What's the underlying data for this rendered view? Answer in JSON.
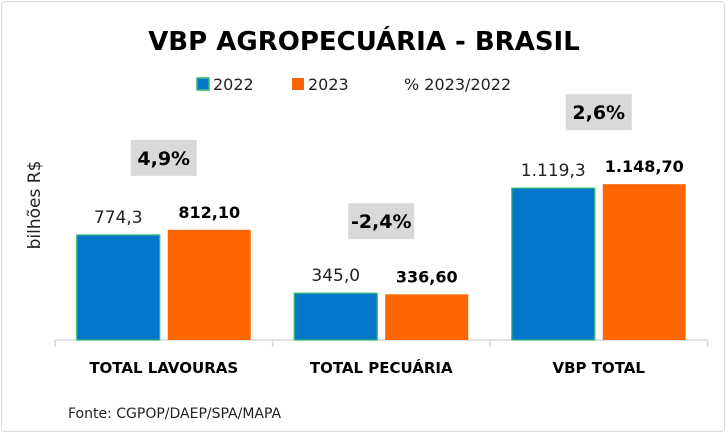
{
  "chart_data": {
    "type": "bar",
    "title": "VBP AGROPECUÁRIA - BRASIL",
    "ylabel": "bilhões R$",
    "xlabel": "",
    "categories": [
      "TOTAL LAVOURAS",
      "TOTAL PECUÁRIA",
      "VBP TOTAL"
    ],
    "series": [
      {
        "name": "2022",
        "values": [
          774.3,
          345.0,
          1119.3
        ],
        "labels": [
          "774,3",
          "345,0",
          "1.119,3"
        ],
        "color": "#0777cb",
        "border": "#2fbf71"
      },
      {
        "name": "2023",
        "values": [
          812.1,
          336.6,
          1148.7
        ],
        "labels": [
          "812,10",
          "336,60",
          "1.148,70"
        ],
        "color": "#ff6600"
      }
    ],
    "pct_series": {
      "name": "% 2023/2022",
      "labels": [
        "4,9%",
        "-2,4%",
        "2,6%"
      ],
      "box_color": "#d9d9d9"
    },
    "ylim": [
      0,
      1150
    ],
    "grid": false,
    "legend": "top",
    "source": "Fonte: CGPOP/DAEP/SPA/MAPA"
  }
}
